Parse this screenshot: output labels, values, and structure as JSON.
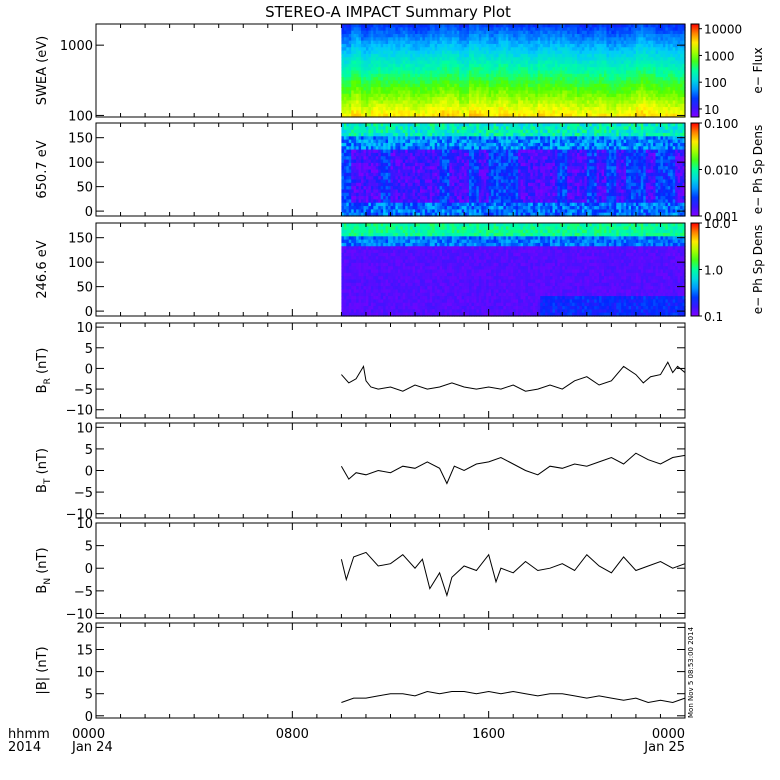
{
  "title": "STEREO-A IMPACT Summary Plot",
  "footer": {
    "row_label": "hhmm",
    "year": "2014",
    "date_start": "Jan 24",
    "date_end": "Jan 25",
    "stamp": "Mon Nov 5 08:53:00 2014"
  },
  "time_axis": {
    "range_hours": [
      0,
      24
    ],
    "ticks": [
      {
        "hour": 0,
        "label": "0000"
      },
      {
        "hour": 8,
        "label": "0800"
      },
      {
        "hour": 16,
        "label": "1600"
      },
      {
        "hour": 24,
        "label": "0000"
      }
    ],
    "data_start_hour": 10.0
  },
  "chart_data": [
    {
      "type": "heatmap",
      "id": "swea",
      "ylabel": "SWEA (eV)",
      "yscale": "log",
      "ylim": [
        95,
        2000
      ],
      "yticks": [
        {
          "v": 1000,
          "label": "1000"
        },
        {
          "v": 100,
          "label": "100"
        }
      ],
      "colorbar": {
        "label": "e− Flux",
        "scale": "log",
        "range": [
          5,
          15000
        ],
        "ticks": [
          {
            "v": 10000,
            "label": "10000"
          },
          {
            "v": 1000,
            "label": "1000"
          },
          {
            "v": 100,
            "label": "100"
          },
          {
            "v": 10,
            "label": "10"
          }
        ]
      },
      "x_range_hours": [
        10.0,
        24
      ],
      "description_bands_top_to_bottom": [
        "blue (~10)",
        "cyan (~100)",
        "green (~1000)",
        "yellow (~5000)"
      ]
    },
    {
      "type": "heatmap",
      "id": "pad650",
      "ylabel": "650.7 eV",
      "ylim": [
        -10,
        180
      ],
      "yticks": [
        {
          "v": 150,
          "label": "150"
        },
        {
          "v": 100,
          "label": "100"
        },
        {
          "v": 50,
          "label": "50"
        },
        {
          "v": 0,
          "label": "0"
        }
      ],
      "colorbar": {
        "label": "e− Ph Sp Dens",
        "scale": "log",
        "range": [
          0.001,
          0.1
        ],
        "ticks": [
          {
            "v": 0.1,
            "label": "0.100"
          },
          {
            "v": 0.01,
            "label": "0.010"
          },
          {
            "v": 0.001,
            "label": "0.001"
          }
        ]
      },
      "x_range_hours": [
        10.0,
        24
      ]
    },
    {
      "type": "heatmap",
      "id": "pad246",
      "ylabel": "246.6 eV",
      "ylim": [
        -10,
        180
      ],
      "yticks": [
        {
          "v": 150,
          "label": "150"
        },
        {
          "v": 100,
          "label": "100"
        },
        {
          "v": 50,
          "label": "50"
        },
        {
          "v": 0,
          "label": "0"
        }
      ],
      "colorbar": {
        "label": "e− Ph Sp Dens",
        "scale": "log",
        "range": [
          0.1,
          10
        ],
        "ticks": [
          {
            "v": 10,
            "label": "10.0"
          },
          {
            "v": 1,
            "label": "1.0"
          },
          {
            "v": 0.1,
            "label": "0.1"
          }
        ]
      },
      "x_range_hours": [
        10.0,
        24
      ]
    },
    {
      "type": "line",
      "id": "br",
      "ylabel": "B",
      "ylabel_sub": "R",
      "ylabel_unit": " (nT)",
      "ylim": [
        -12,
        11
      ],
      "yticks": [
        {
          "v": 10,
          "label": "10"
        },
        {
          "v": 5,
          "label": "5"
        },
        {
          "v": 0,
          "label": "0"
        },
        {
          "v": -5,
          "label": "−5"
        },
        {
          "v": -10,
          "label": "−10"
        }
      ],
      "x_hours": [
        10.0,
        10.3,
        10.6,
        10.9,
        11.0,
        11.2,
        11.5,
        12.0,
        12.5,
        13.0,
        13.5,
        14.0,
        14.5,
        15.0,
        15.5,
        16.0,
        16.5,
        17.0,
        17.5,
        18.0,
        18.5,
        19.0,
        19.5,
        20.0,
        20.5,
        21.0,
        21.5,
        22.0,
        22.3,
        22.6,
        23.0,
        23.3,
        23.5,
        23.7,
        24.0
      ],
      "values": [
        -1.5,
        -3.5,
        -2.5,
        0.5,
        -3.0,
        -4.5,
        -5.0,
        -4.5,
        -5.5,
        -4.0,
        -5.0,
        -4.5,
        -3.5,
        -4.5,
        -5.0,
        -4.5,
        -5.0,
        -4.0,
        -5.5,
        -5.0,
        -4.0,
        -5.0,
        -3.0,
        -2.0,
        -4.0,
        -3.0,
        0.5,
        -1.5,
        -3.5,
        -2.0,
        -1.5,
        1.5,
        -1.0,
        0.5,
        -1.0
      ]
    },
    {
      "type": "line",
      "id": "bt",
      "ylabel": "B",
      "ylabel_sub": "T",
      "ylabel_unit": " (nT)",
      "ylim": [
        -11,
        11
      ],
      "yticks": [
        {
          "v": 10,
          "label": "10"
        },
        {
          "v": 5,
          "label": "5"
        },
        {
          "v": 0,
          "label": "0"
        },
        {
          "v": -5,
          "label": "−5"
        },
        {
          "v": -10,
          "label": "−10"
        }
      ],
      "x_hours": [
        10.0,
        10.3,
        10.6,
        11.0,
        11.5,
        12.0,
        12.5,
        13.0,
        13.5,
        14.0,
        14.3,
        14.6,
        15.0,
        15.5,
        16.0,
        16.5,
        17.0,
        17.5,
        18.0,
        18.5,
        19.0,
        19.5,
        20.0,
        20.5,
        21.0,
        21.5,
        22.0,
        22.5,
        23.0,
        23.5,
        24.0
      ],
      "values": [
        1.0,
        -2.0,
        -0.5,
        -1.0,
        0.0,
        -0.5,
        1.0,
        0.5,
        2.0,
        0.5,
        -3.0,
        1.0,
        0.0,
        1.5,
        2.0,
        3.0,
        1.5,
        0.0,
        -1.0,
        1.0,
        0.5,
        1.5,
        1.0,
        2.0,
        3.0,
        1.5,
        4.0,
        2.5,
        1.5,
        3.0,
        3.5
      ]
    },
    {
      "type": "line",
      "id": "bn",
      "ylabel": "B",
      "ylabel_sub": "N",
      "ylabel_unit": " (nT)",
      "ylim": [
        -11,
        10
      ],
      "yticks": [
        {
          "v": 10,
          "label": "10"
        },
        {
          "v": 5,
          "label": "5"
        },
        {
          "v": 0,
          "label": "0"
        },
        {
          "v": -5,
          "label": "−5"
        },
        {
          "v": -10,
          "label": "−10"
        }
      ],
      "x_hours": [
        10.0,
        10.2,
        10.5,
        11.0,
        11.5,
        12.0,
        12.5,
        13.0,
        13.3,
        13.6,
        14.0,
        14.3,
        14.5,
        15.0,
        15.5,
        16.0,
        16.3,
        16.5,
        17.0,
        17.5,
        18.0,
        18.5,
        19.0,
        19.5,
        20.0,
        20.5,
        21.0,
        21.5,
        22.0,
        22.5,
        23.0,
        23.5,
        24.0
      ],
      "values": [
        2.0,
        -2.5,
        2.5,
        3.5,
        0.5,
        1.0,
        3.0,
        0.0,
        2.0,
        -4.5,
        -1.0,
        -6.0,
        -2.0,
        0.5,
        -0.5,
        3.0,
        -3.0,
        0.0,
        -1.0,
        1.5,
        -0.5,
        0.0,
        1.0,
        -0.5,
        3.0,
        0.5,
        -1.0,
        2.5,
        -0.5,
        0.5,
        1.5,
        0.0,
        1.0
      ]
    },
    {
      "type": "line",
      "id": "bmag",
      "ylabel": "|B| (nT)",
      "ylim": [
        -0.5,
        21
      ],
      "yticks": [
        {
          "v": 20,
          "label": "20"
        },
        {
          "v": 15,
          "label": "15"
        },
        {
          "v": 10,
          "label": "10"
        },
        {
          "v": 5,
          "label": "5"
        },
        {
          "v": 0,
          "label": "0"
        }
      ],
      "x_hours": [
        10.0,
        10.5,
        11.0,
        11.5,
        12.0,
        12.5,
        13.0,
        13.5,
        14.0,
        14.5,
        15.0,
        15.5,
        16.0,
        16.5,
        17.0,
        17.5,
        18.0,
        18.5,
        19.0,
        19.5,
        20.0,
        20.5,
        21.0,
        21.5,
        22.0,
        22.5,
        23.0,
        23.5,
        24.0
      ],
      "values": [
        3.0,
        4.0,
        4.0,
        4.5,
        5.0,
        5.0,
        4.5,
        5.5,
        5.0,
        5.5,
        5.5,
        5.0,
        5.5,
        5.0,
        5.5,
        5.0,
        4.5,
        5.0,
        5.0,
        4.5,
        4.0,
        4.5,
        4.0,
        3.5,
        4.0,
        3.0,
        3.5,
        3.0,
        4.0
      ]
    }
  ]
}
